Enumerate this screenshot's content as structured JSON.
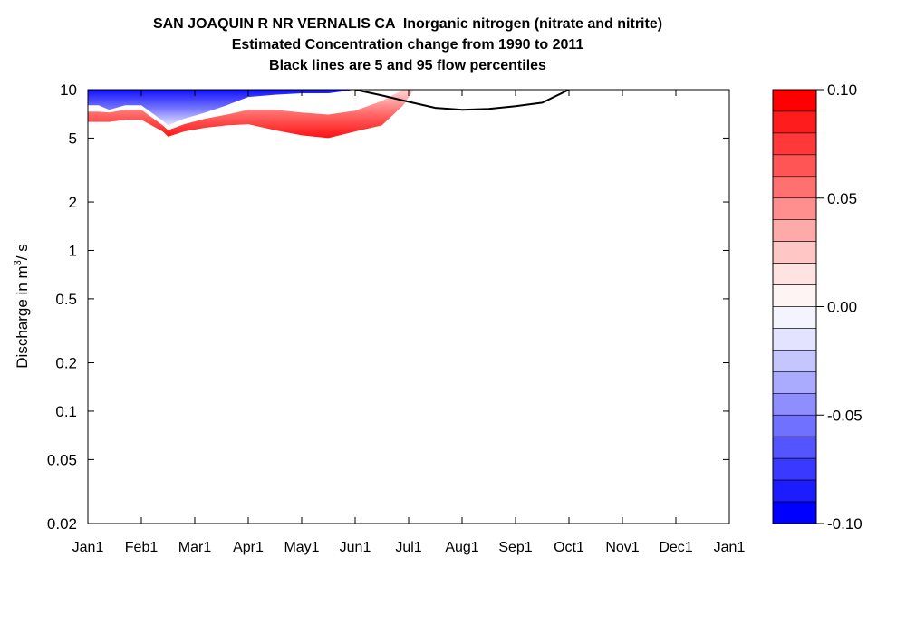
{
  "chart_data": {
    "type": "contour",
    "title_lines": [
      "SAN JOAQUIN R NR VERNALIS CA  Inorganic nitrogen (nitrate and nitrite)",
      "Estimated Concentration change from 1990 to 2011",
      "Black lines are 5 and 95 flow percentiles"
    ],
    "ylabel_prefix": "Discharge in m",
    "ylabel_exp": "3",
    "ylabel_suffix": "/ s",
    "y_scale": "log",
    "ylim": [
      0.02,
      10
    ],
    "y_ticks": [
      10,
      5,
      2,
      1,
      0.5,
      0.2,
      0.1,
      0.05,
      0.02
    ],
    "y_tick_labels": [
      "10",
      "5",
      "2",
      "1",
      "0.5",
      "0.2",
      "0.1",
      "0.05",
      "0.02"
    ],
    "x_ticks": [
      0,
      1,
      2,
      3,
      4,
      5,
      6,
      7,
      8,
      9,
      10,
      11,
      12
    ],
    "x_tick_labels": [
      "Jan1",
      "Feb1",
      "Mar1",
      "Apr1",
      "May1",
      "Jun1",
      "Jul1",
      "Aug1",
      "Sep1",
      "Oct1",
      "Nov1",
      "Dec1",
      "Jan1"
    ],
    "xlim": [
      0,
      12
    ],
    "colorbar": {
      "range": [
        -0.1,
        0.1
      ],
      "tick_values": [
        0.1,
        0.05,
        0.0,
        -0.05,
        -0.1
      ],
      "tick_labels": [
        "0.10",
        "0.05",
        "0.00",
        "-0.05",
        "-0.10"
      ],
      "bands_top_to_bottom": [
        "#ff0000",
        "#ff1c1c",
        "#ff3939",
        "#ff5555",
        "#ff7171",
        "#ff8e8e",
        "#ffaaaa",
        "#ffc6c6",
        "#ffe3e3",
        "#fff4f4",
        "#f4f4ff",
        "#e3e3ff",
        "#c6c6ff",
        "#aaaaff",
        "#8e8eff",
        "#7171ff",
        "#5555ff",
        "#3939ff",
        "#1c1cff",
        "#0000ff"
      ]
    },
    "flow_percentile_95": {
      "month": [
        5.0,
        5.5,
        6.0,
        6.5,
        7.0,
        7.5,
        8.0,
        8.5,
        9.0
      ],
      "discharge": [
        10.0,
        9.2,
        8.4,
        7.7,
        7.5,
        7.6,
        7.9,
        8.3,
        10.0
      ]
    },
    "contour_region": {
      "month": [
        0.0,
        0.2,
        0.4,
        0.7,
        1.0,
        1.4,
        1.5,
        1.8,
        2.2,
        2.6,
        3.0,
        3.5,
        4.0,
        4.5,
        5.0,
        5.5,
        5.9,
        6.1
      ],
      "lower_discharge": [
        6.3,
        6.3,
        6.3,
        6.5,
        6.5,
        5.5,
        5.1,
        5.5,
        5.8,
        6.0,
        6.1,
        5.6,
        5.2,
        5.0,
        5.5,
        6.0,
        8.0,
        10.0
      ],
      "red_top": [
        7.3,
        7.3,
        7.2,
        7.5,
        7.5,
        6.0,
        5.6,
        6.1,
        6.6,
        7.0,
        7.5,
        7.5,
        7.2,
        7.0,
        7.4,
        8.5,
        10.0,
        10.0
      ],
      "white_top": [
        8.0,
        8.0,
        7.5,
        8.0,
        8.0,
        6.4,
        6.0,
        6.6,
        7.2,
        8.0,
        9.0,
        9.3,
        9.5,
        9.5,
        10.0,
        10.0,
        10.0,
        10.0
      ]
    }
  }
}
